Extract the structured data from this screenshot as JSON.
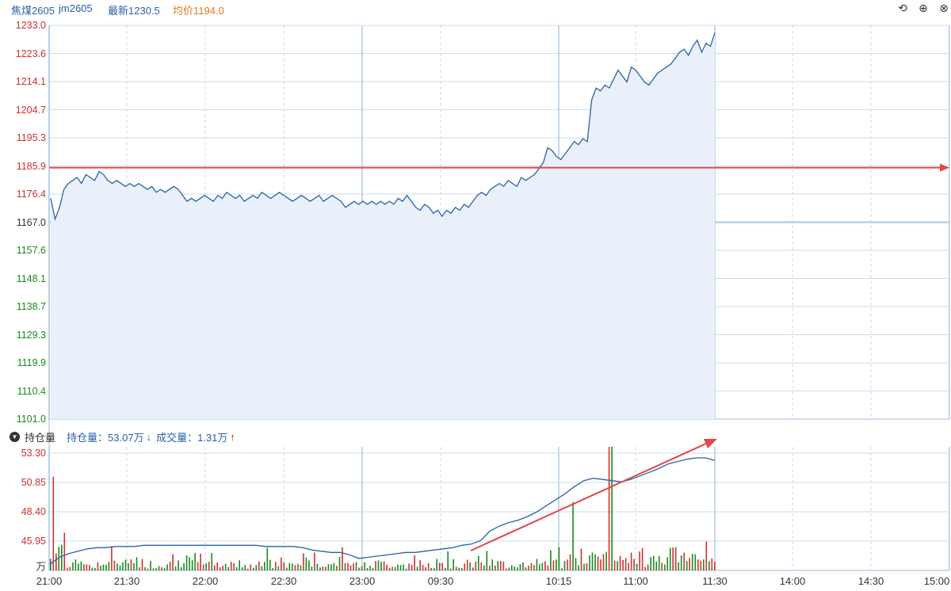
{
  "header": {
    "name": "焦煤2605",
    "code": "jm2605",
    "latest": "最新1230.5",
    "avg": "均价1194.0"
  },
  "toolbar": {
    "undo_icon": "⟲",
    "zoom_in_icon": "⊕",
    "close_icon": "⊗"
  },
  "sub_panel": {
    "selector_label": "持仓量",
    "open_interest_label": "持仓量：53.07万",
    "volume_label": "成交量：1.31万",
    "unit": "万"
  },
  "colors": {
    "price_line": "#2a62a8",
    "area_fill": "#e9f0fa",
    "up_red": "#d03030",
    "down_green": "#1a8a1a",
    "arrow_red": "#e04848",
    "grid": "#c9dcef"
  },
  "chart_data": [
    {
      "type": "line",
      "ylim": [
        1101.0,
        1233.0
      ],
      "reference_price": 1167.0,
      "y_ticks": [
        "1233.0",
        "1223.6",
        "1214.1",
        "1204.7",
        "1195.3",
        "1185.9",
        "1176.4",
        "1167.0",
        "1157.6",
        "1148.1",
        "1138.7",
        "1129.3",
        "1119.9",
        "1110.4",
        "1101.0"
      ],
      "x_ticks": [
        "21:00",
        "21:30",
        "22:00",
        "22:30",
        "23:00",
        "09:30",
        "10:15",
        "11:00",
        "11:30",
        "14:00",
        "14:30",
        "15:00"
      ],
      "horizontal_annotation": 1185.3,
      "series": [
        {
          "values": [
            1175,
            1168,
            1172,
            1178,
            1180,
            1181,
            1182,
            1180,
            1183,
            1182,
            1181,
            1184,
            1183,
            1181,
            1180,
            1181,
            1180,
            1179,
            1180,
            1179,
            1180,
            1179,
            1178,
            1179,
            1177,
            1178,
            1177,
            1178,
            1179,
            1178,
            1176,
            1174,
            1175,
            1174,
            1175,
            1176,
            1175,
            1174,
            1176,
            1175,
            1177,
            1176,
            1175,
            1176,
            1174,
            1175,
            1176,
            1175,
            1177,
            1176,
            1175,
            1176,
            1177,
            1176,
            1175,
            1174,
            1175,
            1176,
            1175,
            1174,
            1175,
            1176,
            1174,
            1175,
            1176,
            1175,
            1174,
            1172,
            1173,
            1174,
            1173,
            1174,
            1173,
            1174,
            1173,
            1174,
            1173,
            1174,
            1173,
            1175,
            1174,
            1176,
            1174,
            1172,
            1171,
            1173,
            1172,
            1170,
            1171,
            1169,
            1171,
            1170,
            1172,
            1171,
            1173,
            1172,
            1174,
            1176,
            1177,
            1176,
            1178,
            1179,
            1180,
            1179,
            1181,
            1180,
            1179,
            1182,
            1181,
            1182,
            1183,
            1185,
            1187,
            1192,
            1191,
            1189,
            1188,
            1190,
            1192,
            1194,
            1193,
            1195,
            1194,
            1208,
            1212,
            1211,
            1213,
            1212,
            1215,
            1218,
            1216,
            1214,
            1219,
            1218,
            1216,
            1214,
            1213,
            1215,
            1217,
            1218,
            1219,
            1220,
            1222,
            1224,
            1225,
            1223,
            1226,
            1228,
            1224,
            1227,
            1226,
            1230.5
          ]
        }
      ]
    },
    {
      "type": "bar",
      "series_label_oi": "持仓量",
      "series_label_vol": "成交量",
      "ylim": [
        43.5,
        53.3
      ],
      "y_ticks": [
        "53.30",
        "50.85",
        "48.40",
        "45.95"
      ],
      "open_interest": [
        44.0,
        44.6,
        44.9,
        45.1,
        45.3,
        45.4,
        45.4,
        45.5,
        45.5,
        45.5,
        45.6,
        45.6,
        45.6,
        45.6,
        45.6,
        45.6,
        45.6,
        45.6,
        45.6,
        45.6,
        45.6,
        45.6,
        45.6,
        45.5,
        45.5,
        45.5,
        45.5,
        45.4,
        45.2,
        45.1,
        45.0,
        45.0,
        44.8,
        44.5,
        44.6,
        44.7,
        44.8,
        44.9,
        45.0,
        45.0,
        45.1,
        45.2,
        45.3,
        45.4,
        45.6,
        45.7,
        46.0,
        46.8,
        47.2,
        47.5,
        47.7,
        48.0,
        48.4,
        48.9,
        49.4,
        49.9,
        50.5,
        51.0,
        51.2,
        51.1,
        51.0,
        50.9,
        51.1,
        51.4,
        51.7,
        52.0,
        52.4,
        52.6,
        52.8,
        52.9,
        52.9,
        52.7
      ]
    }
  ]
}
